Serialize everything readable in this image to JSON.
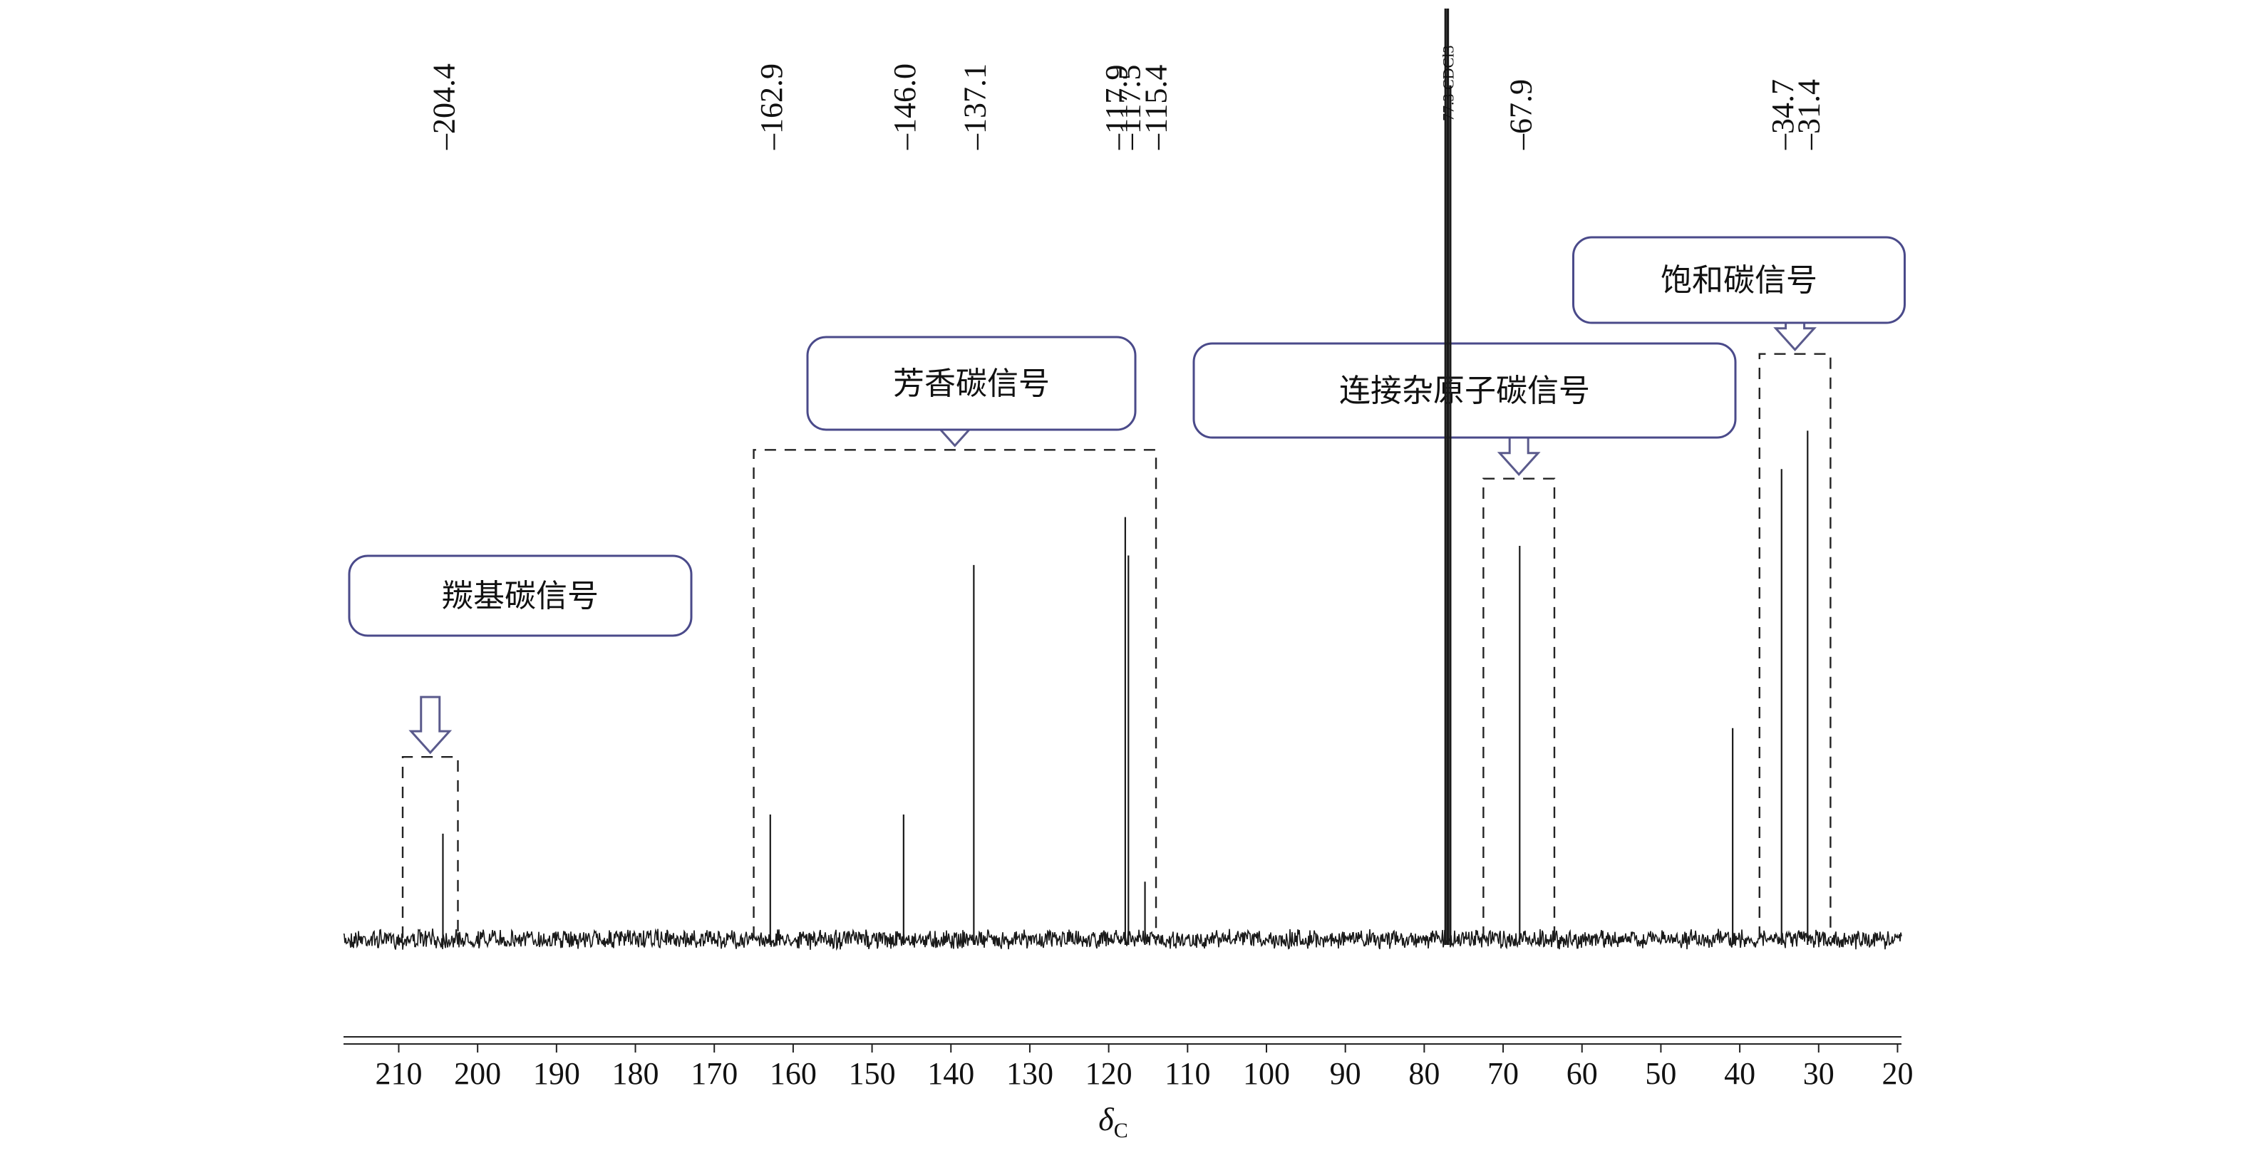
{
  "chart_data": {
    "type": "line",
    "title": "",
    "xlabel_symbol": "δ",
    "xlabel_subscript": "C",
    "x_reversed": true,
    "xlim": [
      217,
      19.5
    ],
    "ylim": [
      0,
      100
    ],
    "baseline": 3,
    "xticks": [
      210,
      200,
      190,
      180,
      170,
      160,
      150,
      140,
      130,
      120,
      110,
      100,
      90,
      80,
      70,
      60,
      50,
      40,
      30,
      20
    ],
    "xtick_labels": [
      "210",
      "200",
      "190",
      "180",
      "170",
      "160",
      "150",
      "140",
      "130",
      "120",
      "110",
      "100",
      "90",
      "80",
      "70",
      "60",
      "50",
      "40",
      "30",
      "20"
    ],
    "peaks": [
      {
        "x": 204.4,
        "y": 14
      },
      {
        "x": 162.9,
        "y": 16
      },
      {
        "x": 146.0,
        "y": 16
      },
      {
        "x": 137.1,
        "y": 42
      },
      {
        "x": 117.9,
        "y": 47
      },
      {
        "x": 117.5,
        "y": 43
      },
      {
        "x": 115.4,
        "y": 9
      },
      {
        "x": 77.3,
        "y": 100
      },
      {
        "x": 77.0,
        "y": 100
      },
      {
        "x": 76.7,
        "y": 92
      },
      {
        "x": 67.9,
        "y": 44
      },
      {
        "x": 40.9,
        "y": 25
      },
      {
        "x": 34.7,
        "y": 52
      },
      {
        "x": 31.4,
        "y": 56
      }
    ],
    "peak_labels": [
      {
        "x": 204.4,
        "text": "204.4"
      },
      {
        "x": 162.9,
        "text": "162.9"
      },
      {
        "x": 146.0,
        "text": "146.0"
      },
      {
        "x": 137.1,
        "text": "137.1"
      },
      {
        "x": 117.9,
        "text": "117.9"
      },
      {
        "x": 117.5,
        "text": "117.5"
      },
      {
        "x": 115.4,
        "text": "115.4"
      },
      {
        "x": 67.9,
        "text": "67.9"
      },
      {
        "x": 34.7,
        "text": "34.7"
      },
      {
        "x": 31.4,
        "text": "31.4"
      }
    ],
    "solvent_label": {
      "x": 77.0,
      "text": "77.3 CDCl3"
    },
    "regions": [
      {
        "label": "羰基碳信号",
        "x_from": 209.5,
        "x_to": 202.5,
        "y_top": 22
      },
      {
        "label": "芳香碳信号",
        "x_from": 165.0,
        "x_to": 114.0,
        "y_top": 54
      },
      {
        "label": "连接杂原子碳信号",
        "x_from": 72.5,
        "x_to": 63.5,
        "y_top": 51
      },
      {
        "label": "饱和碳信号",
        "x_from": 37.5,
        "x_to": 28.5,
        "y_top": 64
      }
    ],
    "colors": {
      "trace": "#1a1a1a",
      "box_border": "#4a4a8a",
      "arrow_stroke": "#5a5a8c",
      "dashed": "#222222"
    }
  }
}
